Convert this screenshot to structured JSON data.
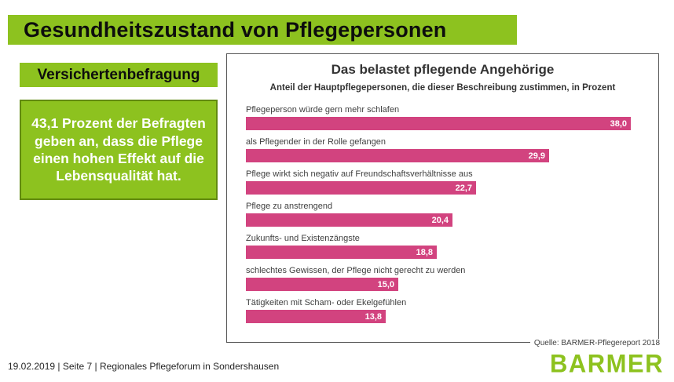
{
  "slide": {
    "title": "Gesundheitszustand von Pflegepersonen",
    "subheader": "Versichertenbefragung",
    "info_text": "43,1 Prozent der Befragten geben an, dass die Pflege einen hohen Effekt auf die Lebensqualität hat.",
    "footer": "19.02.2019 | Seite 7 | Regionales Pflegeforum in Sondershausen",
    "logo_text": "BARMER"
  },
  "colors": {
    "brand_green": "#8dc21f",
    "info_box_border_green": "#628a10",
    "bar_pink": "#d2437f",
    "panel_border_gray": "#595959",
    "text_dark": "#3f3f3f"
  },
  "chart_data": {
    "type": "bar",
    "orientation": "horizontal",
    "title": "Das belastet pflegende Angehörige",
    "subtitle": "Anteil der Hauptpflegepersonen, die dieser Beschreibung zustimmen, in Prozent",
    "categories": [
      "Pflegeperson würde gern mehr schlafen",
      "als Pflegender in der Rolle gefangen",
      "Pflege wirkt sich negativ auf Freundschaftsverhältnisse aus",
      "Pflege zu anstrengend",
      "Zukunfts- und Existenzängste",
      "schlechtes Gewissen, der Pflege nicht gerecht zu werden",
      "Tätigkeiten mit Scham- oder Ekelgefühlen"
    ],
    "values": [
      38.0,
      29.9,
      22.7,
      20.4,
      18.8,
      15.0,
      13.8
    ],
    "value_labels": [
      "38,0",
      "29,9",
      "22,7",
      "20,4",
      "18,8",
      "15,0",
      "13,8"
    ],
    "xlim": [
      0,
      40
    ],
    "grid": false,
    "legend": false,
    "bar_color": "#d2437f",
    "source": "Quelle: BARMER-Pflegereport 2018"
  }
}
